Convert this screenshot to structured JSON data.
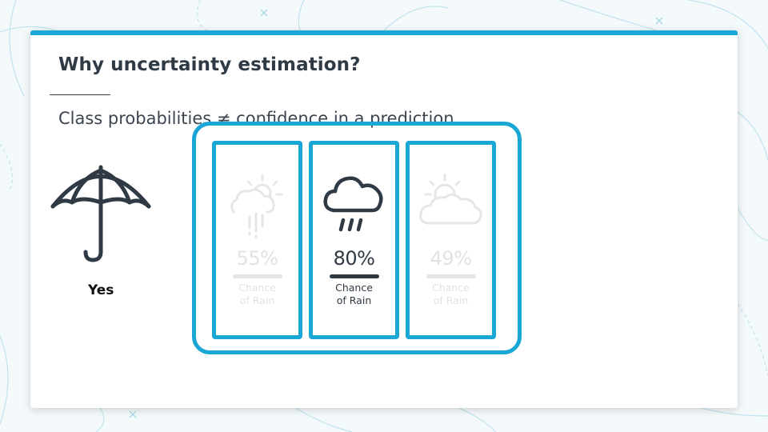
{
  "slide": {
    "title": "Why uncertainty estimation?",
    "subtitle": "Class probabilities ≠ confidence in a prediction",
    "decision_label": "Yes",
    "accent_color": "#1aa7d6",
    "text_color": "#2f3a45"
  },
  "forecasts": [
    {
      "icon": "rain-showers-icon",
      "percent": "55%",
      "line1": "Chance",
      "line2": "of Rain",
      "state": "faded"
    },
    {
      "icon": "rain-cloud-icon",
      "percent": "80%",
      "line1": "Chance",
      "line2": "of Rain",
      "state": "active"
    },
    {
      "icon": "partly-cloudy-icon",
      "percent": "49%",
      "line1": "Chance",
      "line2": "of Rain",
      "state": "faded"
    }
  ],
  "icons": [
    "umbrella-icon",
    "rain-showers-icon",
    "rain-cloud-icon",
    "partly-cloudy-icon"
  ]
}
